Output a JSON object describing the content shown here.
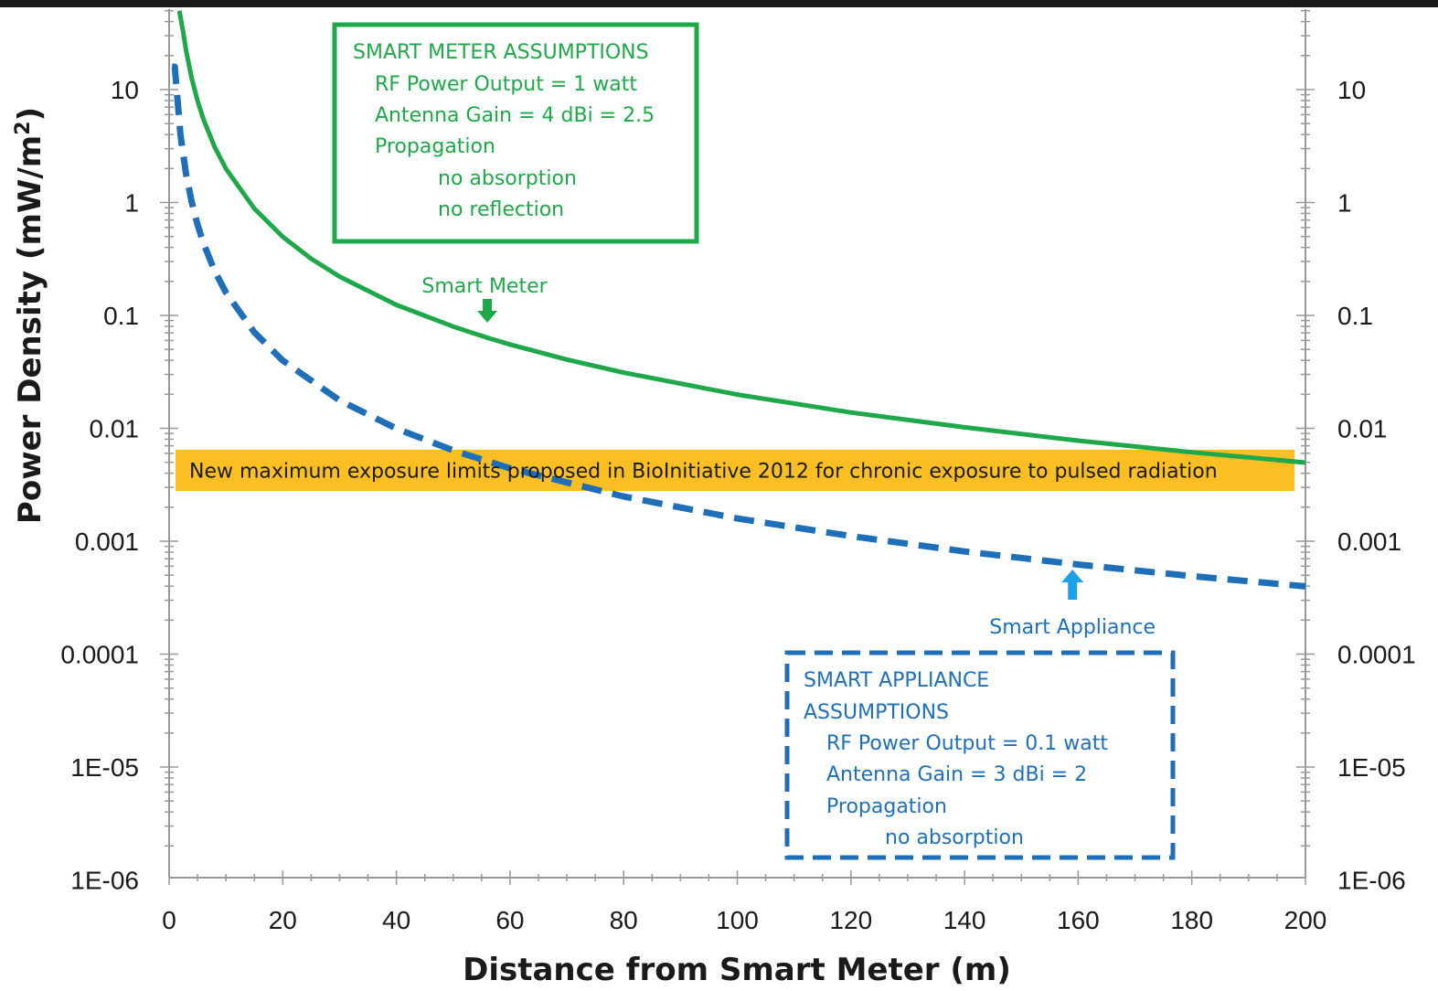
{
  "chart_data": {
    "type": "line",
    "xlabel": "Distance from Smart Meter (m)",
    "ylabel_main": "Power Density (mW/m",
    "ylabel_sup": "2",
    "ylabel_close": ")",
    "y_scale": "log",
    "xlim": [
      0,
      200
    ],
    "ylim": [
      1e-06,
      50
    ],
    "x_ticks": [
      0,
      20,
      40,
      60,
      80,
      100,
      120,
      140,
      160,
      180,
      200
    ],
    "x_tick_labels": [
      "0",
      "20",
      "40",
      "60",
      "80",
      "100",
      "120",
      "140",
      "160",
      "180",
      "200"
    ],
    "y_ticks": [
      1e-06,
      1e-05,
      0.0001,
      0.001,
      0.01,
      0.1,
      1,
      10
    ],
    "y_tick_labels": [
      "1E-06",
      "1E-05",
      "0.0001",
      "0.001",
      "0.01",
      "0.1",
      "1",
      "10"
    ],
    "series": [
      {
        "name": "Smart Meter",
        "color": "#1fa84a",
        "style": "solid",
        "x": [
          1.8,
          2.5,
          3,
          4,
          5,
          6,
          8,
          10,
          15,
          20,
          25,
          30,
          40,
          50,
          56,
          60,
          70,
          80,
          100,
          120,
          140,
          160,
          180,
          200
        ],
        "y": [
          50,
          31.8,
          22.1,
          12.4,
          7.96,
          5.53,
          3.11,
          1.99,
          0.884,
          0.497,
          0.318,
          0.221,
          0.124,
          0.0796,
          0.0635,
          0.0553,
          0.0406,
          0.0311,
          0.0199,
          0.0138,
          0.0102,
          0.00777,
          0.00614,
          0.00497
        ]
      },
      {
        "name": "Smart Appliance",
        "color": "#1f6fb8",
        "style": "dashed",
        "x": [
          0.5,
          1,
          2,
          3,
          4,
          5,
          6,
          8,
          10,
          15,
          20,
          30,
          40,
          50,
          60,
          80,
          100,
          120,
          140,
          160,
          180,
          200
        ],
        "y": [
          16,
          15.9,
          3.98,
          1.77,
          0.995,
          0.637,
          0.442,
          0.249,
          0.159,
          0.0708,
          0.0398,
          0.0177,
          0.00995,
          0.00637,
          0.00442,
          0.00249,
          0.00159,
          0.00111,
          0.000812,
          0.000622,
          0.000491,
          0.000398
        ]
      }
    ],
    "band": {
      "label": "New maximum exposure limits proposed in BioInitiative 2012 for chronic exposure to pulsed radiation",
      "color": "#fbbf24",
      "y_low": 0.003,
      "y_high": 0.006
    },
    "annotations": {
      "smart_meter_label": "Smart Meter",
      "smart_appliance_label": "Smart Appliance",
      "smart_meter_arrow_x": 56,
      "smart_appliance_arrow_x": 159
    },
    "meter_box": {
      "lines": [
        "SMART METER ASSUMPTIONS",
        "RF Power  Output = 1 watt",
        "Antenna Gain =  4 dBi = 2.5",
        "Propagation",
        "no absorption",
        "no reflection"
      ]
    },
    "appliance_box": {
      "lines": [
        "SMART APPLIANCE",
        "ASSUMPTIONS",
        "RF Power Output = 0.1 watt",
        "Antenna Gain = 3 dBi = 2",
        "Propagation",
        "no absorption"
      ]
    }
  }
}
